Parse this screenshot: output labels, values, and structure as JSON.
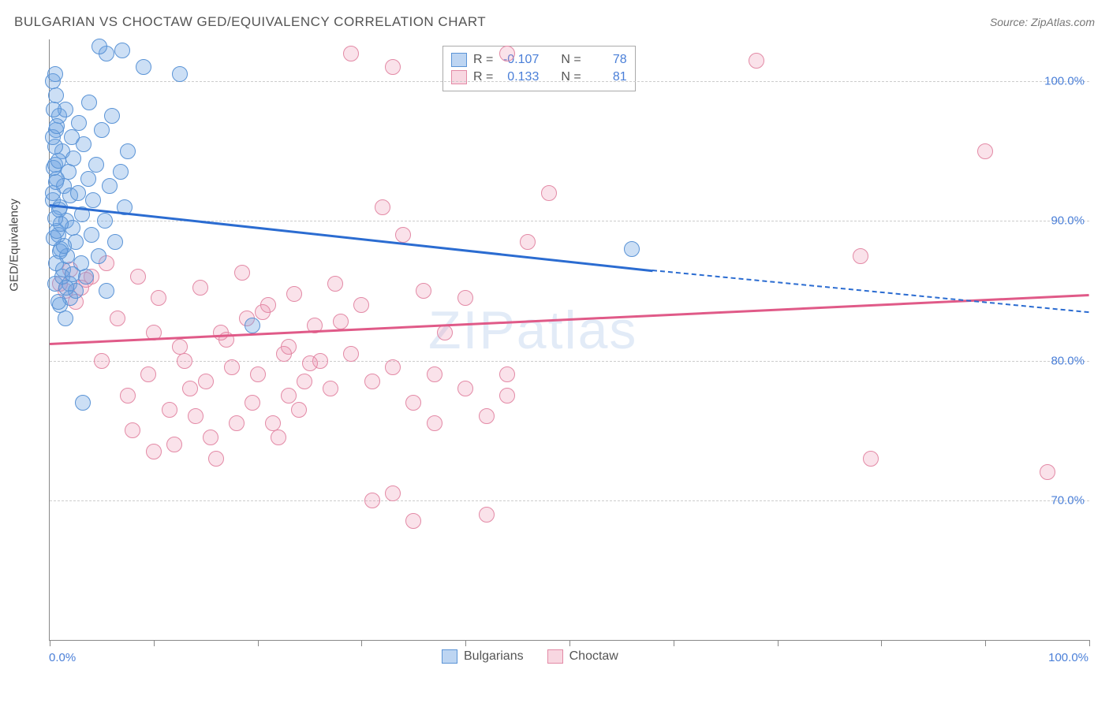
{
  "title": "BULGARIAN VS CHOCTAW GED/EQUIVALENCY CORRELATION CHART",
  "source_label": "Source: ZipAtlas.com",
  "y_axis_label": "GED/Equivalency",
  "watermark_bold": "ZIP",
  "watermark_thin": "atlas",
  "colors": {
    "series_a_fill": "rgba(108,162,226,0.35)",
    "series_a_stroke": "#5b94d6",
    "series_a_line": "#2b6cd1",
    "series_b_fill": "rgba(235,140,170,0.25)",
    "series_b_stroke": "#e38aa6",
    "series_b_line": "#e05a88",
    "axis_text": "#4a7fd8",
    "grid": "#cccccc",
    "border": "#888888"
  },
  "marker_radius": 10,
  "y_range": [
    60,
    103
  ],
  "x_range": [
    0,
    100
  ],
  "y_ticks": [
    {
      "v": 70,
      "label": "70.0%"
    },
    {
      "v": 80,
      "label": "80.0%"
    },
    {
      "v": 90,
      "label": "90.0%"
    },
    {
      "v": 100,
      "label": "100.0%"
    }
  ],
  "x_ticks": [
    0,
    10,
    20,
    30,
    40,
    50,
    60,
    70,
    80,
    90,
    100
  ],
  "x_tick_labels": [
    {
      "v": 0,
      "label": "0.0%"
    },
    {
      "v": 100,
      "label": "100.0%"
    }
  ],
  "legend_bottom": [
    {
      "label": "Bulgarians",
      "fill": "rgba(108,162,226,0.45)",
      "stroke": "#5b94d6"
    },
    {
      "label": "Choctaw",
      "fill": "rgba(235,140,170,0.35)",
      "stroke": "#e38aa6"
    }
  ],
  "stats_box": {
    "rows": [
      {
        "swatch_fill": "rgba(108,162,226,0.45)",
        "swatch_stroke": "#5b94d6",
        "r": "-0.107",
        "n": "78"
      },
      {
        "swatch_fill": "rgba(235,140,170,0.35)",
        "swatch_stroke": "#e38aa6",
        "r": "0.133",
        "n": "81"
      }
    ],
    "labels": {
      "r": "R =",
      "n": "N ="
    }
  },
  "trend_lines": {
    "a_solid": {
      "x1": 0,
      "y1": 91.2,
      "x2": 58,
      "y2": 86.5
    },
    "a_dash": {
      "x1": 58,
      "y1": 86.5,
      "x2": 100,
      "y2": 83.5
    },
    "b_solid": {
      "x1": 0,
      "y1": 81.3,
      "x2": 100,
      "y2": 84.8
    }
  },
  "series_a": [
    [
      0.3,
      91.5
    ],
    [
      0.5,
      94
    ],
    [
      0.6,
      96.5
    ],
    [
      0.7,
      93
    ],
    [
      0.8,
      89
    ],
    [
      0.9,
      97.5
    ],
    [
      1.0,
      91
    ],
    [
      1.1,
      88
    ],
    [
      1.2,
      95
    ],
    [
      1.3,
      86.5
    ],
    [
      1.4,
      92.5
    ],
    [
      1.5,
      98
    ],
    [
      1.6,
      90
    ],
    [
      1.7,
      87.5
    ],
    [
      1.8,
      93.5
    ],
    [
      1.9,
      85.5
    ],
    [
      2.0,
      91.8
    ],
    [
      2.1,
      96
    ],
    [
      2.2,
      89.5
    ],
    [
      2.3,
      94.5
    ],
    [
      2.5,
      88.5
    ],
    [
      2.7,
      92
    ],
    [
      2.8,
      97
    ],
    [
      3.0,
      87
    ],
    [
      3.1,
      90.5
    ],
    [
      3.3,
      95.5
    ],
    [
      3.5,
      86
    ],
    [
      3.7,
      93
    ],
    [
      3.8,
      98.5
    ],
    [
      4.0,
      89
    ],
    [
      4.2,
      91.5
    ],
    [
      4.5,
      94
    ],
    [
      4.7,
      87.5
    ],
    [
      5.0,
      96.5
    ],
    [
      5.3,
      90
    ],
    [
      5.5,
      85
    ],
    [
      5.8,
      92.5
    ],
    [
      6.0,
      97.5
    ],
    [
      6.3,
      88.5
    ],
    [
      6.8,
      93.5
    ],
    [
      7.2,
      91
    ],
    [
      7.5,
      95
    ],
    [
      1.0,
      84
    ],
    [
      1.5,
      83
    ],
    [
      2.0,
      84.5
    ],
    [
      2.5,
      85
    ],
    [
      0.5,
      85.5
    ],
    [
      0.8,
      84.2
    ],
    [
      1.2,
      86
    ],
    [
      1.6,
      85.2
    ],
    [
      2.2,
      86.2
    ],
    [
      0.6,
      87
    ],
    [
      1.0,
      87.8
    ],
    [
      1.4,
      88.2
    ],
    [
      0.4,
      88.8
    ],
    [
      0.7,
      89.3
    ],
    [
      1.1,
      89.8
    ],
    [
      0.5,
      90.2
    ],
    [
      0.9,
      90.8
    ],
    [
      0.3,
      92
    ],
    [
      0.6,
      92.8
    ],
    [
      0.4,
      93.8
    ],
    [
      0.8,
      94.3
    ],
    [
      0.5,
      95.3
    ],
    [
      0.3,
      96
    ],
    [
      0.7,
      96.8
    ],
    [
      0.4,
      98
    ],
    [
      0.6,
      99
    ],
    [
      0.3,
      100
    ],
    [
      0.5,
      100.5
    ],
    [
      5.5,
      102
    ],
    [
      7.0,
      102.2
    ],
    [
      9.0,
      101
    ],
    [
      12.5,
      100.5
    ],
    [
      3.2,
      77
    ],
    [
      19.5,
      82.5
    ],
    [
      56,
      88
    ],
    [
      4.8,
      102.5
    ]
  ],
  "series_b": [
    [
      1.5,
      85
    ],
    [
      2.5,
      84.2
    ],
    [
      3.5,
      85.8
    ],
    [
      5,
      80
    ],
    [
      6.5,
      83
    ],
    [
      7.5,
      77.5
    ],
    [
      8.5,
      86
    ],
    [
      9.5,
      79
    ],
    [
      10.5,
      84.5
    ],
    [
      11.5,
      76.5
    ],
    [
      12.5,
      81
    ],
    [
      13.5,
      78
    ],
    [
      14.5,
      85.2
    ],
    [
      15.5,
      74.5
    ],
    [
      16.5,
      82
    ],
    [
      17.5,
      79.5
    ],
    [
      18.5,
      86.3
    ],
    [
      19.5,
      77
    ],
    [
      20.5,
      83.5
    ],
    [
      21.5,
      75.5
    ],
    [
      22.5,
      80.5
    ],
    [
      23.5,
      84.8
    ],
    [
      24.5,
      78.5
    ],
    [
      25.5,
      82.5
    ],
    [
      8,
      75
    ],
    [
      10,
      73.5
    ],
    [
      12,
      74
    ],
    [
      14,
      76
    ],
    [
      16,
      73
    ],
    [
      18,
      75.5
    ],
    [
      22,
      74.5
    ],
    [
      24,
      76.5
    ],
    [
      20,
      79
    ],
    [
      26,
      80
    ],
    [
      27.5,
      85.5
    ],
    [
      17,
      81.5
    ],
    [
      19,
      83
    ],
    [
      21,
      84
    ],
    [
      23,
      81
    ],
    [
      25,
      79.8
    ],
    [
      29,
      102
    ],
    [
      33,
      101
    ],
    [
      32,
      91
    ],
    [
      34,
      89
    ],
    [
      36,
      85
    ],
    [
      31,
      78.5
    ],
    [
      33,
      79.5
    ],
    [
      35,
      77
    ],
    [
      37,
      75.5
    ],
    [
      31,
      70
    ],
    [
      35,
      68.5
    ],
    [
      40,
      78
    ],
    [
      42,
      76
    ],
    [
      38,
      82
    ],
    [
      40,
      84.5
    ],
    [
      42,
      69
    ],
    [
      44,
      79
    ],
    [
      44,
      102
    ],
    [
      46,
      88.5
    ],
    [
      48,
      92
    ],
    [
      2,
      86.5
    ],
    [
      3,
      85.2
    ],
    [
      4,
      86
    ],
    [
      5.5,
      87
    ],
    [
      1,
      85.5
    ],
    [
      10,
      82
    ],
    [
      13,
      80
    ],
    [
      15,
      78.5
    ],
    [
      28,
      82.8
    ],
    [
      30,
      84
    ],
    [
      68,
      101.5
    ],
    [
      78,
      87.5
    ],
    [
      79,
      73
    ],
    [
      90,
      95
    ],
    [
      96,
      72
    ],
    [
      44,
      77.5
    ],
    [
      33,
      70.5
    ],
    [
      37,
      79
    ],
    [
      29,
      80.5
    ],
    [
      27,
      78
    ],
    [
      23,
      77.5
    ]
  ]
}
